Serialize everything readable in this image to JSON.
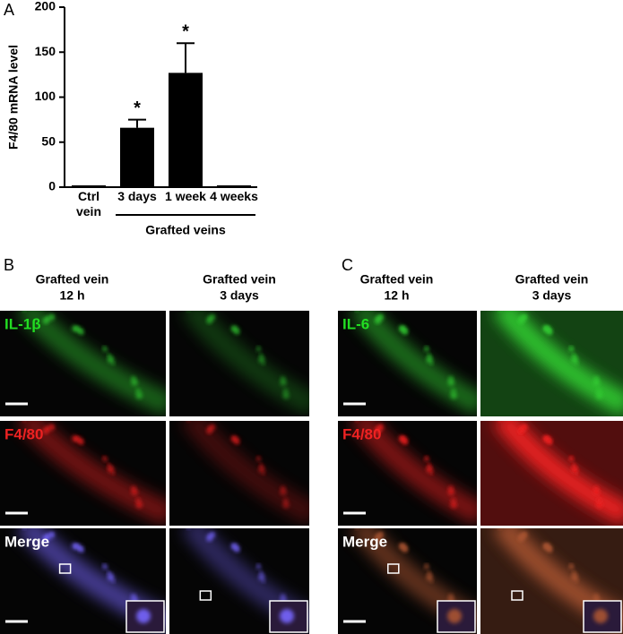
{
  "chart_data": {
    "type": "bar",
    "panel_label": "A",
    "y_label": "F4/80 mRNA level",
    "categories": [
      "Ctrl vein",
      "3 days",
      "1 week",
      "4 weeks"
    ],
    "values": [
      2,
      66,
      127,
      2
    ],
    "errors": [
      0,
      9,
      33,
      0
    ],
    "significance": [
      null,
      "*",
      "*",
      null
    ],
    "group_label": "Grafted veins",
    "color": "#000000",
    "ylim": [
      0,
      200
    ],
    "yticks": [
      0,
      50,
      100,
      150,
      200
    ]
  },
  "panels": [
    {
      "label": "B",
      "columns": [
        {
          "title": "Grafted vein",
          "time": "12 h"
        },
        {
          "title": "Grafted vein",
          "time": "3 days"
        }
      ],
      "rows": [
        "IL-1β",
        "F4/80",
        "Merge"
      ]
    },
    {
      "label": "C",
      "columns": [
        {
          "title": "Grafted vein",
          "time": "12 h"
        },
        {
          "title": "Grafted vein",
          "time": "3 days"
        }
      ],
      "rows": [
        "IL-6",
        "F4/80",
        "Merge"
      ]
    }
  ]
}
